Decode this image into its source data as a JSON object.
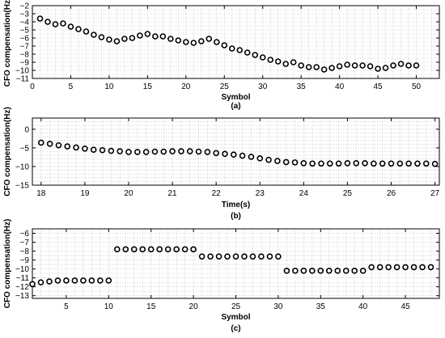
{
  "chart_data": [
    {
      "type": "scatter",
      "caption": "(a)",
      "xlabel": "Symbol",
      "ylabel": "CFO compensation(Hz)",
      "xlim": [
        0,
        53
      ],
      "ylim": [
        -11,
        -2
      ],
      "xticks": [
        0,
        5,
        10,
        15,
        20,
        25,
        30,
        35,
        40,
        45,
        50
      ],
      "yticks": [
        -2,
        -3,
        -4,
        -5,
        -6,
        -7,
        -8,
        -9,
        -10,
        -11
      ],
      "x_minor_step": 1,
      "y_minor_step": 0.5,
      "grid": true,
      "x": [
        1,
        2,
        3,
        4,
        5,
        6,
        7,
        8,
        9,
        10,
        11,
        12,
        13,
        14,
        15,
        16,
        17,
        18,
        19,
        20,
        21,
        22,
        23,
        24,
        25,
        26,
        27,
        28,
        29,
        30,
        31,
        32,
        33,
        34,
        35,
        36,
        37,
        38,
        39,
        40,
        41,
        42,
        43,
        44,
        45,
        46,
        47,
        48,
        49,
        50
      ],
      "y": [
        -3.6,
        -4.0,
        -4.3,
        -4.2,
        -4.6,
        -4.9,
        -5.2,
        -5.6,
        -5.9,
        -6.2,
        -6.4,
        -6.1,
        -6.0,
        -5.7,
        -5.5,
        -5.8,
        -5.8,
        -6.1,
        -6.3,
        -6.5,
        -6.6,
        -6.4,
        -6.1,
        -6.5,
        -6.9,
        -7.3,
        -7.5,
        -7.8,
        -8.1,
        -8.4,
        -8.7,
        -8.9,
        -9.2,
        -9.0,
        -9.4,
        -9.6,
        -9.6,
        -9.9,
        -9.7,
        -9.5,
        -9.3,
        -9.4,
        -9.4,
        -9.5,
        -9.8,
        -9.7,
        -9.4,
        -9.2,
        -9.4,
        -9.4
      ]
    },
    {
      "type": "scatter",
      "caption": "(b)",
      "xlabel": "Time(s)",
      "ylabel": "CFO compensation(Hz)",
      "xlim": [
        17.8,
        27.1
      ],
      "ylim": [
        -15,
        3
      ],
      "xticks": [
        18,
        19,
        20,
        21,
        22,
        23,
        24,
        25,
        26,
        27
      ],
      "yticks": [
        0,
        -5,
        -10,
        -15
      ],
      "x_minor_step": 0.2,
      "y_minor_step": 1,
      "grid": true,
      "x": [
        18.0,
        18.2,
        18.4,
        18.6,
        18.8,
        19.0,
        19.2,
        19.4,
        19.6,
        19.8,
        20.0,
        20.2,
        20.4,
        20.6,
        20.8,
        21.0,
        21.2,
        21.4,
        21.6,
        21.8,
        22.0,
        22.2,
        22.4,
        22.6,
        22.8,
        23.0,
        23.2,
        23.4,
        23.6,
        23.8,
        24.0,
        24.2,
        24.4,
        24.6,
        24.8,
        25.0,
        25.2,
        25.4,
        25.6,
        25.8,
        26.0,
        26.2,
        26.4,
        26.6,
        26.8,
        27.0
      ],
      "y": [
        -3.6,
        -3.9,
        -4.3,
        -4.6,
        -4.9,
        -5.2,
        -5.5,
        -5.6,
        -5.8,
        -5.9,
        -6.1,
        -6.1,
        -6.1,
        -6.0,
        -6.0,
        -5.9,
        -5.9,
        -5.9,
        -6.0,
        -6.1,
        -6.4,
        -6.6,
        -6.8,
        -7.1,
        -7.4,
        -7.8,
        -8.2,
        -8.5,
        -8.8,
        -8.9,
        -9.1,
        -9.2,
        -9.2,
        -9.2,
        -9.2,
        -9.1,
        -9.1,
        -9.1,
        -9.2,
        -9.2,
        -9.2,
        -9.2,
        -9.2,
        -9.2,
        -9.2,
        -9.3
      ]
    },
    {
      "type": "scatter",
      "caption": "(c)",
      "xlabel": "Symbol",
      "ylabel": "CFO compensation(Hz)",
      "xlim": [
        1,
        49
      ],
      "ylim": [
        -13.3,
        -5.5
      ],
      "xticks": [
        5,
        10,
        15,
        20,
        25,
        30,
        35,
        40,
        45
      ],
      "yticks": [
        -6,
        -7,
        -8,
        -9,
        -10,
        -11,
        -12,
        -13
      ],
      "x_minor_step": 1,
      "y_minor_step": 0.5,
      "grid": true,
      "x": [
        1,
        2,
        3,
        4,
        5,
        6,
        7,
        8,
        9,
        10,
        11,
        12,
        13,
        14,
        15,
        16,
        17,
        18,
        19,
        20,
        21,
        22,
        23,
        24,
        25,
        26,
        27,
        28,
        29,
        30,
        31,
        32,
        33,
        34,
        35,
        36,
        37,
        38,
        39,
        40,
        41,
        42,
        43,
        44,
        45,
        46,
        47,
        48
      ],
      "y": [
        -11.7,
        -11.5,
        -11.4,
        -11.3,
        -11.3,
        -11.3,
        -11.3,
        -11.3,
        -11.3,
        -11.3,
        -7.8,
        -7.8,
        -7.8,
        -7.8,
        -7.8,
        -7.8,
        -7.8,
        -7.8,
        -7.8,
        -7.8,
        -8.6,
        -8.6,
        -8.6,
        -8.6,
        -8.6,
        -8.6,
        -8.6,
        -8.6,
        -8.6,
        -8.6,
        -10.2,
        -10.2,
        -10.2,
        -10.2,
        -10.2,
        -10.2,
        -10.2,
        -10.2,
        -10.2,
        -10.2,
        -9.8,
        -9.8,
        -9.8,
        -9.8,
        -9.8,
        -9.8,
        -9.8,
        -9.8
      ]
    }
  ]
}
